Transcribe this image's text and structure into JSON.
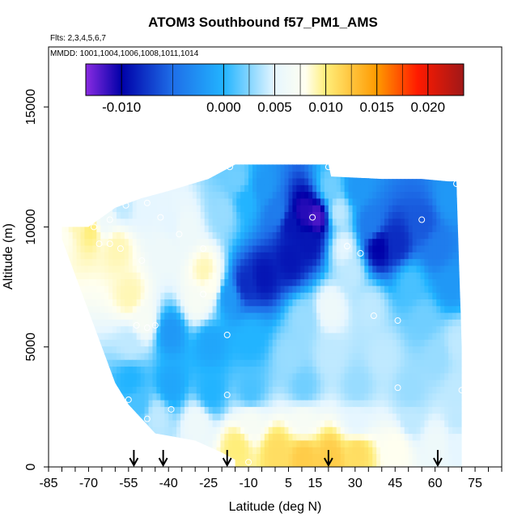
{
  "header": {
    "title": "ATOM3 Southbound f57_PM1_AMS",
    "flights": "Flts: 2,3,4,5,6,7",
    "dates": "MMDD: 1001,1004,1006,1008,1011,1014"
  },
  "chart_data": {
    "type": "heatmap",
    "title": "ATOM3 Southbound f57_PM1_AMS",
    "xlabel": "Latitude (deg N)",
    "ylabel": "Altitude (m)",
    "xlim": [
      -85,
      85
    ],
    "ylim": [
      0,
      17500
    ],
    "x_ticks": [
      -85,
      -70,
      -55,
      -40,
      -25,
      -10,
      5,
      15,
      30,
      45,
      60,
      75
    ],
    "x_minor_ticks": [
      -80,
      -75,
      -65,
      -60,
      -50,
      -45,
      -35,
      -30,
      -20,
      -15,
      -5,
      0,
      10,
      20,
      25,
      35,
      40,
      50,
      55,
      65,
      70,
      80,
      85
    ],
    "y_ticks": [
      0,
      5000,
      10000,
      15000
    ],
    "grid": false,
    "colorbar": {
      "placement": "top",
      "ticks": [
        "-0.010",
        "0.000",
        "0.005",
        "0.010",
        "0.015",
        "0.020"
      ],
      "tick_values": [
        -0.01,
        0.0,
        0.005,
        0.01,
        0.015,
        0.02
      ],
      "range": [
        -0.0135,
        0.0235
      ],
      "stops": [
        {
          "v": -0.0135,
          "c": "#8a2be2"
        },
        {
          "v": -0.01,
          "c": "#0000a8"
        },
        {
          "v": -0.005,
          "c": "#1e6ee8"
        },
        {
          "v": 0.0,
          "c": "#22b4ff"
        },
        {
          "v": 0.005,
          "c": "#e6f6ff"
        },
        {
          "v": 0.008,
          "c": "#fffff0"
        },
        {
          "v": 0.01,
          "c": "#ffee7a"
        },
        {
          "v": 0.015,
          "c": "#ff9a00"
        },
        {
          "v": 0.019,
          "c": "#ff1a00"
        },
        {
          "v": 0.0235,
          "c": "#a01818"
        }
      ]
    },
    "field_points": [
      {
        "lat": -80,
        "alt": 9500,
        "v": 0.008
      },
      {
        "lat": -75,
        "alt": 10000,
        "v": 0.009
      },
      {
        "lat": -70,
        "alt": 9800,
        "v": 0.01
      },
      {
        "lat": -65,
        "alt": 10200,
        "v": 0.006
      },
      {
        "lat": -60,
        "alt": 9000,
        "v": 0.009
      },
      {
        "lat": -55,
        "alt": 7000,
        "v": 0.009
      },
      {
        "lat": -50,
        "alt": 6000,
        "v": 0.007
      },
      {
        "lat": -58,
        "alt": 10800,
        "v": 0.004
      },
      {
        "lat": -50,
        "alt": 10800,
        "v": 0.005
      },
      {
        "lat": -55,
        "alt": 5000,
        "v": 0.004
      },
      {
        "lat": -55,
        "alt": 3500,
        "v": 0.0
      },
      {
        "lat": -52,
        "alt": 2500,
        "v": 0.001
      },
      {
        "lat": -42,
        "alt": 9000,
        "v": 0.006
      },
      {
        "lat": -40,
        "alt": 10000,
        "v": 0.005
      },
      {
        "lat": -35,
        "alt": 9800,
        "v": 0.006
      },
      {
        "lat": -27,
        "alt": 8000,
        "v": 0.009
      },
      {
        "lat": -25,
        "alt": 7500,
        "v": 0.008
      },
      {
        "lat": -30,
        "alt": 6800,
        "v": 0.007
      },
      {
        "lat": -20,
        "alt": 10500,
        "v": 0.003
      },
      {
        "lat": -15,
        "alt": 11800,
        "v": 0.002
      },
      {
        "lat": -12,
        "alt": 11000,
        "v": 0.0
      },
      {
        "lat": -5,
        "alt": 11500,
        "v": -0.002
      },
      {
        "lat": 0,
        "alt": 10500,
        "v": -0.004
      },
      {
        "lat": 5,
        "alt": 10000,
        "v": -0.009
      },
      {
        "lat": 10,
        "alt": 10500,
        "v": -0.011
      },
      {
        "lat": 15,
        "alt": 10300,
        "v": -0.012
      },
      {
        "lat": 12,
        "alt": 9200,
        "v": -0.009
      },
      {
        "lat": 5,
        "alt": 8500,
        "v": -0.009
      },
      {
        "lat": -5,
        "alt": 7800,
        "v": -0.009
      },
      {
        "lat": -12,
        "alt": 7500,
        "v": -0.008
      },
      {
        "lat": -18,
        "alt": 7000,
        "v": -0.002
      },
      {
        "lat": 20,
        "alt": 11500,
        "v": 0.002
      },
      {
        "lat": 23,
        "alt": 10500,
        "v": 0.004
      },
      {
        "lat": 25,
        "alt": 9000,
        "v": 0.005
      },
      {
        "lat": 28,
        "alt": 8000,
        "v": 0.004
      },
      {
        "lat": 30,
        "alt": 11500,
        "v": -0.002
      },
      {
        "lat": 35,
        "alt": 10000,
        "v": -0.004
      },
      {
        "lat": 38,
        "alt": 9000,
        "v": -0.01
      },
      {
        "lat": 45,
        "alt": 9200,
        "v": -0.008
      },
      {
        "lat": 55,
        "alt": 10000,
        "v": -0.006
      },
      {
        "lat": 60,
        "alt": 9000,
        "v": -0.004
      },
      {
        "lat": 65,
        "alt": 11000,
        "v": -0.002
      },
      {
        "lat": 50,
        "alt": 7500,
        "v": 0.001
      },
      {
        "lat": 65,
        "alt": 7500,
        "v": -0.002
      },
      {
        "lat": 55,
        "alt": 6000,
        "v": 0.002
      },
      {
        "lat": 35,
        "alt": 6500,
        "v": 0.004
      },
      {
        "lat": 20,
        "alt": 6500,
        "v": 0.006
      },
      {
        "lat": 10,
        "alt": 6000,
        "v": 0.003
      },
      {
        "lat": -40,
        "alt": 5500,
        "v": -0.002
      },
      {
        "lat": -25,
        "alt": 5000,
        "v": -0.001
      },
      {
        "lat": -10,
        "alt": 5200,
        "v": 0.0
      },
      {
        "lat": 5,
        "alt": 4500,
        "v": 0.003
      },
      {
        "lat": 20,
        "alt": 4500,
        "v": 0.004
      },
      {
        "lat": 40,
        "alt": 4500,
        "v": 0.004
      },
      {
        "lat": 60,
        "alt": 4500,
        "v": 0.003
      },
      {
        "lat": 68,
        "alt": 5000,
        "v": 0.004
      },
      {
        "lat": -40,
        "alt": 3200,
        "v": -0.001
      },
      {
        "lat": -25,
        "alt": 3000,
        "v": 0.0
      },
      {
        "lat": -10,
        "alt": 3000,
        "v": 0.001
      },
      {
        "lat": 10,
        "alt": 3200,
        "v": 0.002
      },
      {
        "lat": 30,
        "alt": 3200,
        "v": 0.003
      },
      {
        "lat": 50,
        "alt": 3000,
        "v": 0.003
      },
      {
        "lat": 68,
        "alt": 3000,
        "v": 0.004
      },
      {
        "lat": -45,
        "alt": 2000,
        "v": 0.004
      },
      {
        "lat": -30,
        "alt": 1700,
        "v": 0.006
      },
      {
        "lat": -10,
        "alt": 1800,
        "v": 0.007
      },
      {
        "lat": 10,
        "alt": 1800,
        "v": 0.007
      },
      {
        "lat": 30,
        "alt": 1800,
        "v": 0.005
      },
      {
        "lat": 50,
        "alt": 1800,
        "v": 0.004
      },
      {
        "lat": 68,
        "alt": 1800,
        "v": 0.004
      },
      {
        "lat": -15,
        "alt": 700,
        "v": 0.01
      },
      {
        "lat": 0,
        "alt": 500,
        "v": 0.011
      },
      {
        "lat": 10,
        "alt": 300,
        "v": 0.012
      },
      {
        "lat": 20,
        "alt": 300,
        "v": 0.012
      },
      {
        "lat": 30,
        "alt": 500,
        "v": 0.011
      },
      {
        "lat": 45,
        "alt": 700,
        "v": 0.008
      },
      {
        "lat": 60,
        "alt": 800,
        "v": 0.006
      },
      {
        "lat": 68,
        "alt": 900,
        "v": 0.005
      }
    ],
    "domain_upper_edge": [
      {
        "lat": -80,
        "alt": 10000
      },
      {
        "lat": -70,
        "alt": 10000
      },
      {
        "lat": -60,
        "alt": 10800
      },
      {
        "lat": -50,
        "alt": 11200
      },
      {
        "lat": -40,
        "alt": 11500
      },
      {
        "lat": -25,
        "alt": 12000
      },
      {
        "lat": -15,
        "alt": 12600
      },
      {
        "lat": 0,
        "alt": 12600
      },
      {
        "lat": 20,
        "alt": 12600
      },
      {
        "lat": 21,
        "alt": 12100
      },
      {
        "lat": 40,
        "alt": 12000
      },
      {
        "lat": 55,
        "alt": 12000
      },
      {
        "lat": 65,
        "alt": 11900
      },
      {
        "lat": 68,
        "alt": 11900
      }
    ],
    "domain_left_edge": [
      {
        "lat": -80,
        "alt": 10000
      },
      {
        "lat": -80,
        "alt": 9500
      },
      {
        "lat": -75,
        "alt": 8000
      },
      {
        "lat": -70,
        "alt": 6500
      },
      {
        "lat": -65,
        "alt": 5000
      },
      {
        "lat": -60,
        "alt": 3500
      },
      {
        "lat": -55,
        "alt": 2600
      },
      {
        "lat": -50,
        "alt": 2000
      },
      {
        "lat": -45,
        "alt": 1400
      },
      {
        "lat": -30,
        "alt": 1100
      },
      {
        "lat": -20,
        "alt": 600
      },
      {
        "lat": -15,
        "alt": 300
      },
      {
        "lat": -15,
        "alt": 0
      }
    ],
    "domain_right_edge_lat": 70,
    "domain_right_edge_top_lat": 68,
    "observation_points": [
      {
        "lat": -62,
        "alt": 10300
      },
      {
        "lat": -56,
        "alt": 10900
      },
      {
        "lat": -48,
        "alt": 11000
      },
      {
        "lat": -66,
        "alt": 9300
      },
      {
        "lat": -68,
        "alt": 10000
      },
      {
        "lat": -62,
        "alt": 9300
      },
      {
        "lat": -58,
        "alt": 9100
      },
      {
        "lat": -50,
        "alt": 8600
      },
      {
        "lat": -43,
        "alt": 10400
      },
      {
        "lat": -36,
        "alt": 9700
      },
      {
        "lat": -27,
        "alt": 9100
      },
      {
        "lat": -27,
        "alt": 7200
      },
      {
        "lat": -52,
        "alt": 5900
      },
      {
        "lat": -48,
        "alt": 5800
      },
      {
        "lat": -45,
        "alt": 5900
      },
      {
        "lat": -18,
        "alt": 5500
      },
      {
        "lat": -17,
        "alt": 12500
      },
      {
        "lat": 14,
        "alt": 10400
      },
      {
        "lat": 27,
        "alt": 9200
      },
      {
        "lat": 32,
        "alt": 8900
      },
      {
        "lat": 37,
        "alt": 6300
      },
      {
        "lat": 46,
        "alt": 6100
      },
      {
        "lat": 55,
        "alt": 10300
      },
      {
        "lat": 68,
        "alt": 11800
      },
      {
        "lat": 20,
        "alt": 12500
      },
      {
        "lat": -55,
        "alt": 2800
      },
      {
        "lat": -48,
        "alt": 2000
      },
      {
        "lat": -39,
        "alt": 2400
      },
      {
        "lat": -18,
        "alt": 3000
      },
      {
        "lat": 46,
        "alt": 3300
      },
      {
        "lat": 70,
        "alt": 3200
      },
      {
        "lat": -10,
        "alt": 200
      }
    ],
    "arrows_lat": [
      -53,
      -42,
      -18,
      20,
      61
    ],
    "colors": {
      "axis": "#000000",
      "observation_marker": "#ffffff",
      "arrow": "#000000"
    }
  }
}
